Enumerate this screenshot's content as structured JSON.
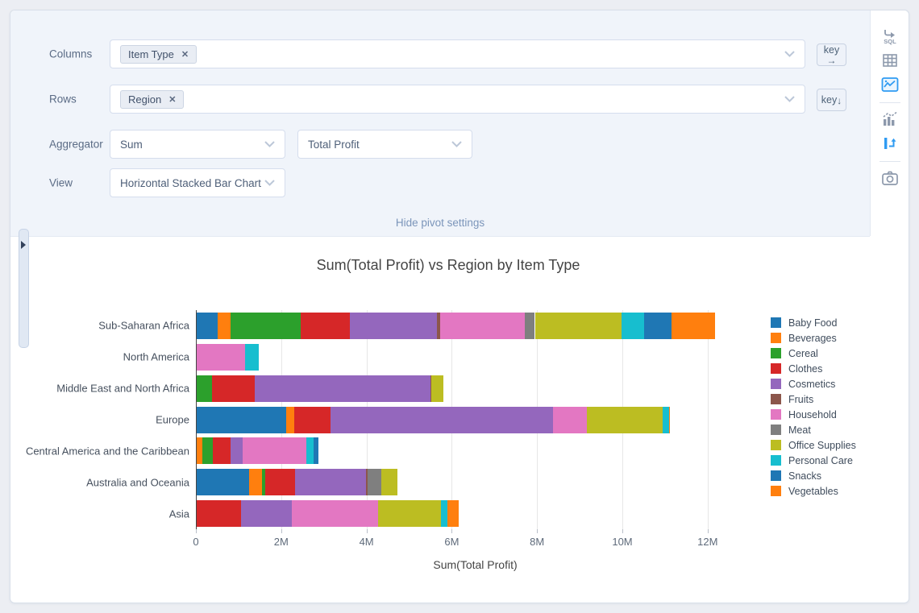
{
  "colors": {
    "accent_active_icon": "#2f9bf2",
    "inactive_icon": "#8d99ac",
    "panel_bg": "#f0f4fa",
    "link": "#7b95ba"
  },
  "pivot_settings": {
    "columns": {
      "label": "Columns",
      "tags": [
        {
          "text": "Item Type",
          "remove_symbol": "✕"
        }
      ],
      "key_label": "key",
      "key_arrow": "→"
    },
    "rows": {
      "label": "Rows",
      "tags": [
        {
          "text": "Region",
          "remove_symbol": "✕"
        }
      ],
      "key_label": "key",
      "key_arrow": "↓"
    },
    "aggregator": {
      "label": "Aggregator",
      "selected": "Sum",
      "value_selected": "Total Profit"
    },
    "view": {
      "label": "View",
      "selected": "Horizontal Stacked Bar Chart"
    },
    "hide_link": "Hide pivot settings"
  },
  "toolbar": {
    "sql_icon_text": "SQL",
    "icons": [
      {
        "name": "sql-icon",
        "active": false
      },
      {
        "name": "table-icon",
        "active": false
      },
      {
        "name": "chart-image-icon",
        "active": true
      },
      {
        "name": "mixed-chart-icon",
        "active": false
      },
      {
        "name": "pivot-icon",
        "active": true
      },
      {
        "name": "camera-icon",
        "active": false
      }
    ]
  },
  "chart_data": {
    "type": "bar",
    "orientation": "horizontal",
    "stacked": true,
    "title": "Sum(Total Profit) vs Region by Item Type",
    "xlabel": "Sum(Total Profit)",
    "ylabel": "",
    "values_unit": "millions",
    "xlim": [
      0,
      13.1
    ],
    "xticks": [
      0,
      2,
      4,
      6,
      8,
      10,
      12
    ],
    "xtick_labels": [
      "0",
      "2M",
      "4M",
      "6M",
      "8M",
      "10M",
      "12M"
    ],
    "grid": true,
    "legend_position": "right",
    "categories": [
      "Sub-Saharan Africa",
      "North America",
      "Middle East and North Africa",
      "Europe",
      "Central America and the Caribbean",
      "Australia and Oceania",
      "Asia"
    ],
    "series": [
      {
        "name": "Baby Food",
        "color": "#1f77b4",
        "values": [
          0.49,
          0,
          0,
          2.1,
          0,
          1.22,
          0
        ]
      },
      {
        "name": "Beverages",
        "color": "#ff7f0e",
        "values": [
          0.3,
          0,
          0,
          0.18,
          0.13,
          0.31,
          0
        ]
      },
      {
        "name": "Cereal",
        "color": "#2ca02c",
        "values": [
          1.64,
          0,
          0.35,
          0,
          0.25,
          0.08,
          0
        ]
      },
      {
        "name": "Clothes",
        "color": "#d62728",
        "values": [
          1.16,
          0,
          1.02,
          0.86,
          0.41,
          0.69,
          1.04
        ]
      },
      {
        "name": "Cosmetics",
        "color": "#9467bd",
        "values": [
          2.04,
          0,
          4.11,
          5.22,
          0.28,
          1.67,
          1.19
        ]
      },
      {
        "name": "Fruits",
        "color": "#8c564b",
        "values": [
          0.08,
          0,
          0.03,
          0,
          0,
          0.04,
          0
        ]
      },
      {
        "name": "Household",
        "color": "#e377c2",
        "values": [
          1.98,
          1.13,
          0,
          0.79,
          1.5,
          0,
          2.02
        ]
      },
      {
        "name": "Meat",
        "color": "#7f7f7f",
        "values": [
          0.24,
          0,
          0,
          0,
          0,
          0.31,
          0
        ]
      },
      {
        "name": "Office Supplies",
        "color": "#bcbd22",
        "values": [
          2.04,
          0,
          0.27,
          1.77,
          0,
          0.38,
          1.48
        ]
      },
      {
        "name": "Personal Care",
        "color": "#17becf",
        "values": [
          0.52,
          0.33,
          0,
          0.15,
          0.17,
          0,
          0.14
        ]
      },
      {
        "name": "Snacks",
        "color": "#1f77b4",
        "values": [
          0.64,
          0,
          0,
          0,
          0.11,
          0,
          0
        ]
      },
      {
        "name": "Vegetables",
        "color": "#ff7f0e",
        "values": [
          1.02,
          0,
          0,
          0.03,
          0,
          0,
          0.27
        ]
      }
    ]
  }
}
